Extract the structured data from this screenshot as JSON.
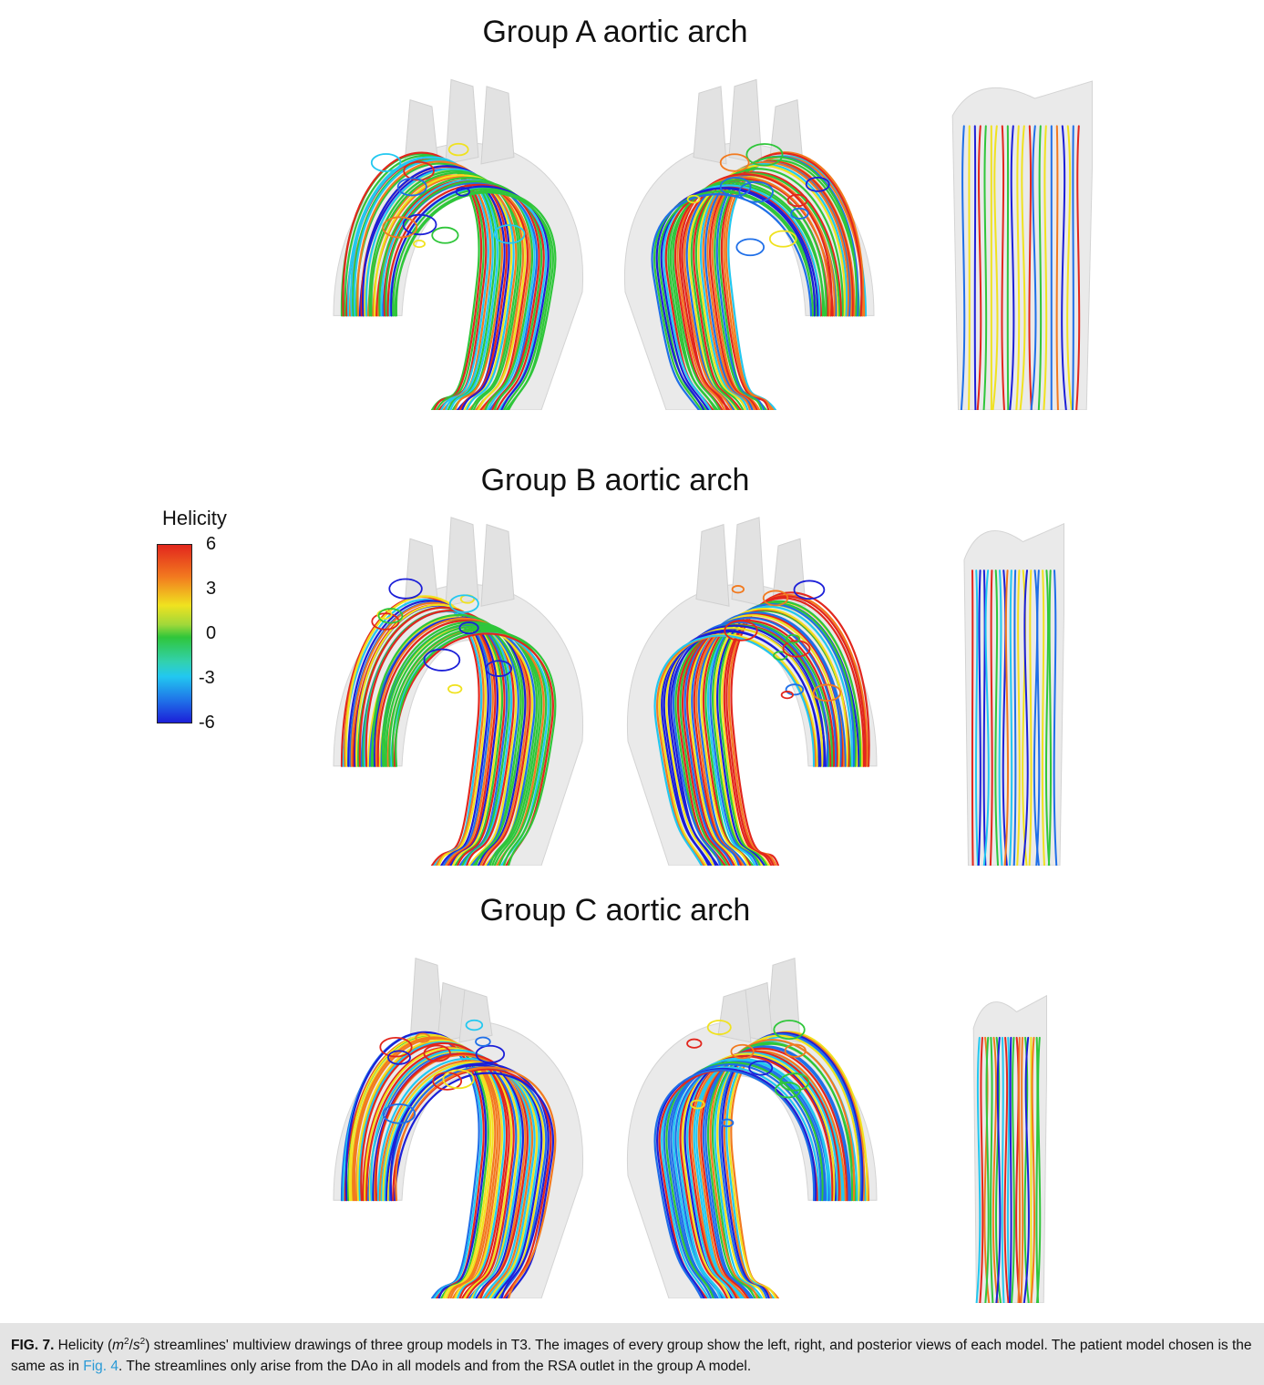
{
  "groups": [
    {
      "title": "Group A aortic arch",
      "views": [
        "left",
        "right",
        "posterior"
      ]
    },
    {
      "title": "Group B aortic arch",
      "views": [
        "left",
        "right",
        "posterior"
      ]
    },
    {
      "title": "Group C aortic arch",
      "views": [
        "left",
        "right",
        "posterior"
      ]
    }
  ],
  "colorbar": {
    "title": "Helicity",
    "ticks": [
      "6",
      "3",
      "0",
      "-3",
      "-6"
    ],
    "colors": [
      "#e2261d",
      "#f27a1f",
      "#f0e21f",
      "#2fc63a",
      "#22c8f0",
      "#1f6fe8",
      "#1c1fd8"
    ]
  },
  "caption": {
    "label": "FIG. 7.",
    "text_1": " Helicity (",
    "unit_m": "m",
    "unit_sup1": "2",
    "unit_slash": "/",
    "unit_s": "s",
    "unit_sup2": "2",
    "text_2": ") streamlines' multiview drawings of three group models in T3. The images of every group show the left, right, and posterior views of each model. The patient model chosen is the same as in ",
    "link": "Fig. 4",
    "text_3": ". The streamlines only arise from the DAo in all models and from the RSA outlet in the group A model."
  }
}
